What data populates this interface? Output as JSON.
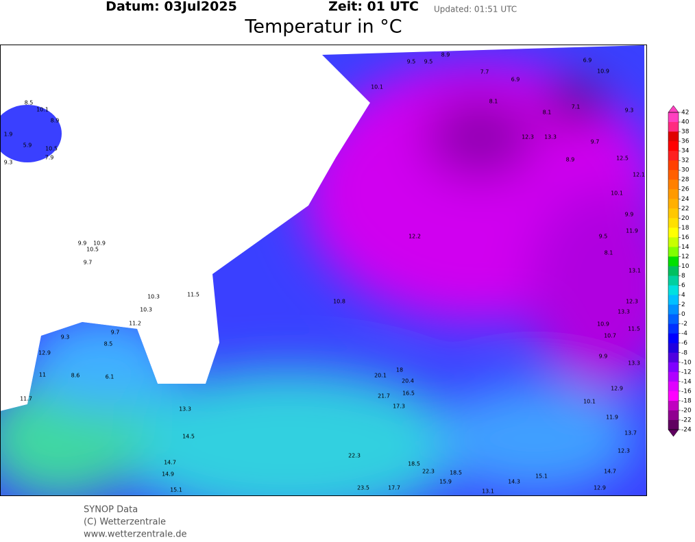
{
  "header": {
    "date": "Datum: 03Jul2025",
    "time": "Zeit: 01 UTC",
    "updated": "Updated: 01:51 UTC",
    "title": "Temperatur in °C"
  },
  "colorbar": {
    "ticks": [
      42,
      40,
      38,
      36,
      34,
      32,
      30,
      28,
      26,
      24,
      22,
      20,
      18,
      16,
      14,
      12,
      10,
      8,
      6,
      4,
      2,
      0,
      -2,
      -4,
      -6,
      -8,
      -10,
      -12,
      -14,
      -16,
      -18,
      -20,
      -22,
      -24
    ],
    "colors": [
      "#ff40c0",
      "#ff2a80",
      "#e00000",
      "#ff0000",
      "#ff2020",
      "#ff4000",
      "#ff6000",
      "#ff8000",
      "#ff9a00",
      "#ffb000",
      "#ffc800",
      "#ffe000",
      "#ffff00",
      "#c8ff00",
      "#80ff00",
      "#00e000",
      "#00c060",
      "#00d0a0",
      "#00e0e0",
      "#00c0ff",
      "#0090ff",
      "#0060ff",
      "#0030ff",
      "#0000ff",
      "#2000e0",
      "#5000e0",
      "#8000ff",
      "#b000ff",
      "#e000ff",
      "#ff00ff",
      "#c000c0",
      "#900090",
      "#600060"
    ]
  },
  "stations": [
    8.5,
    10.1,
    8.9,
    5.9,
    10.5,
    9.3,
    7.9,
    1.9,
    9.9,
    10.9,
    10.5,
    9.7,
    10.3,
    11.5,
    10.3,
    11.2,
    9.3,
    9.7,
    8.5,
    12.9,
    11.0,
    8.6,
    6.1,
    11.7,
    13.3,
    14.5,
    14.7,
    14.9,
    15.1,
    9.5,
    9.5,
    8.9,
    7.7,
    6.9,
    6.9,
    10.9,
    7.1,
    9.3,
    10.1,
    8.1,
    8.1,
    12.3,
    13.3,
    9.7,
    8.9,
    12.5,
    12.1,
    10.1,
    9.9,
    11.9,
    9.5,
    8.1,
    13.1,
    12.3,
    13.3,
    10.9,
    10.7,
    11.5,
    9.9,
    13.3,
    12.9,
    10.1,
    11.9,
    13.7,
    12.3,
    14.7,
    12.9,
    15.1,
    14.3,
    13.1,
    12.2,
    10.8,
    18.0,
    20.4,
    16.5,
    17.3,
    20.1,
    21.7,
    22.3,
    18.5,
    22.3,
    18.5,
    15.9,
    17.7,
    23.5
  ],
  "footer": {
    "source": "SYNOP Data",
    "copyright": "(C) Wetterzentrale",
    "url": "www.wetterzentrale.de"
  }
}
